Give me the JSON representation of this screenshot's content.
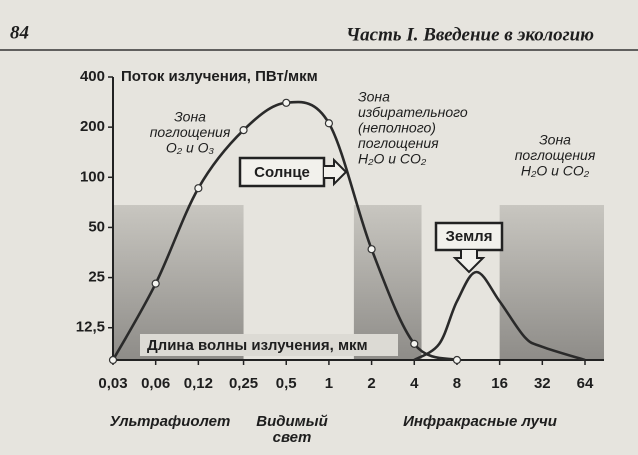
{
  "page_header": {
    "page": "84",
    "title": "Часть I. Введение в экологию"
  },
  "chart_data": {
    "type": "line",
    "ylabel": "Поток излучения, ПВт/мкм",
    "xlabel": "Длина волны излучения, мкм",
    "log_x": true,
    "log_y": true,
    "xlim": [
      0.03,
      64
    ],
    "ylim": [
      8,
      400
    ],
    "xticks": [
      {
        "value": 0.03,
        "label": "0,03"
      },
      {
        "value": 0.06,
        "label": "0,06"
      },
      {
        "value": 0.12,
        "label": "0,12"
      },
      {
        "value": 0.25,
        "label": "0,25"
      },
      {
        "value": 0.5,
        "label": "0,5"
      },
      1,
      2,
      4,
      8,
      16,
      32,
      64
    ],
    "yticks": [
      {
        "value": 12.5,
        "label": "12,5"
      },
      25,
      50,
      100,
      200,
      400
    ],
    "series": [
      {
        "name": "Солнце",
        "color": "#2a2a2a",
        "markers": true,
        "x": [
          0.03,
          0.06,
          0.12,
          0.25,
          0.5,
          1,
          2,
          4,
          8
        ],
        "values": [
          8,
          23,
          86,
          192,
          280,
          211,
          37,
          10,
          8
        ]
      },
      {
        "name": "Земля",
        "color": "#2a2a2a",
        "markers": false,
        "x": [
          4,
          6,
          8,
          11,
          16,
          24,
          32,
          64
        ],
        "values": [
          8,
          10,
          18,
          27,
          18,
          11,
          9.6,
          8
        ]
      }
    ],
    "zones": [
      {
        "x": [
          0.03,
          0.25
        ],
        "label": [
          "Зона",
          "поглощения",
          "O₂ и O₃"
        ]
      },
      {
        "x": [
          1.5,
          4.5
        ],
        "label": [
          "Зона",
          "избирательного",
          "(неполного)",
          "поглощения",
          "H₂O и CO₂"
        ]
      },
      {
        "x": [
          16,
          64
        ],
        "label": [
          "Зона",
          "поглощения",
          "H₂O и CO₂"
        ]
      }
    ],
    "regions": [
      "Ультрафиолет",
      "Видимый свет",
      "Инфракрасные лучи"
    ]
  }
}
